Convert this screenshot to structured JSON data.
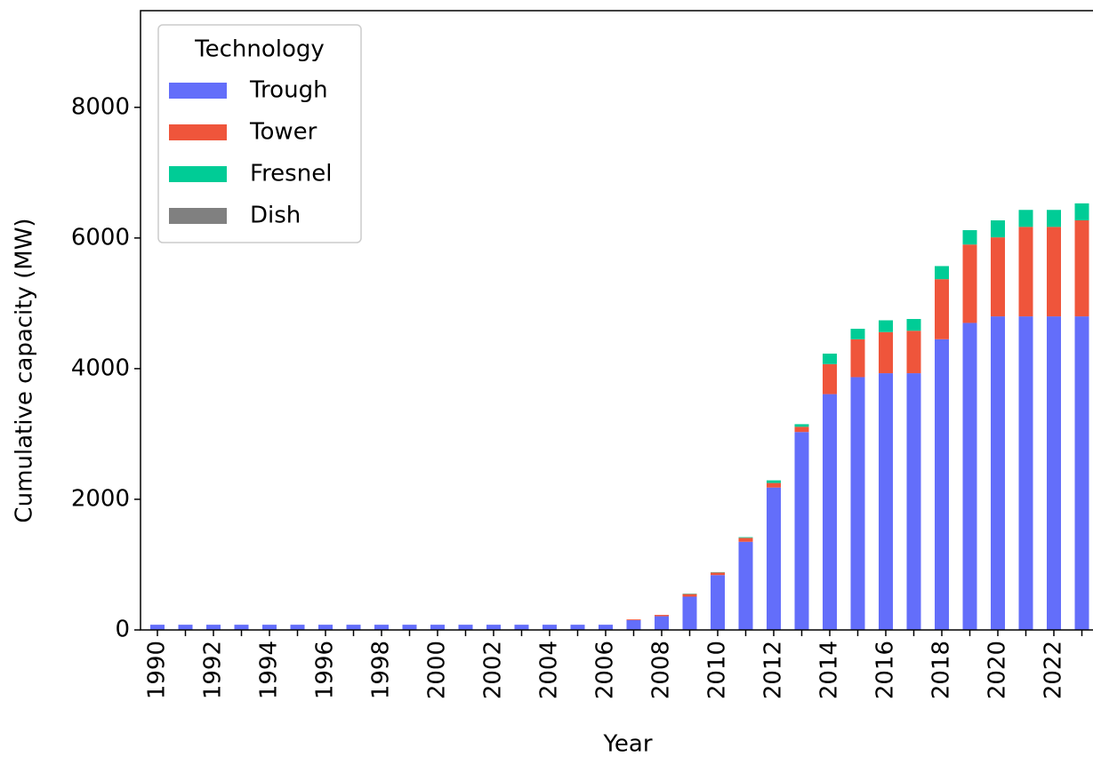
{
  "chart_data": {
    "type": "stacked_bar",
    "xlabel": "Year",
    "ylabel": "Cumulative capacity (MW)",
    "legend_title": "Technology",
    "legend": "upper left",
    "categories": [
      "1990",
      null,
      "1992",
      null,
      "1994",
      null,
      "1996",
      null,
      "1998",
      null,
      "2000",
      null,
      "2002",
      null,
      "2004",
      null,
      "2006",
      null,
      "2008",
      null,
      "2010",
      null,
      "2012",
      null,
      "2014",
      null,
      "2016",
      null,
      "2018",
      null,
      "2020",
      null,
      "2022",
      null
    ],
    "series": [
      {
        "name": "Trough",
        "color": "#636efa",
        "values": [
          80,
          80,
          80,
          80,
          80,
          80,
          80,
          80,
          80,
          80,
          80,
          80,
          80,
          80,
          80,
          80,
          80,
          150,
          210,
          510,
          840,
          1350,
          2180,
          3030,
          3610,
          3870,
          3930,
          3930,
          4450,
          4700,
          4800,
          4800,
          4800,
          4800
        ]
      },
      {
        "name": "Tower",
        "color": "#ef553b",
        "values": [
          0,
          0,
          0,
          0,
          0,
          0,
          0,
          0,
          0,
          0,
          0,
          0,
          0,
          0,
          0,
          0,
          0,
          11,
          20,
          40,
          40,
          60,
          70,
          80,
          460,
          580,
          630,
          650,
          920,
          1200,
          1210,
          1370,
          1370,
          1470
        ]
      },
      {
        "name": "Fresnel",
        "color": "#00cc96",
        "values": [
          0,
          0,
          0,
          0,
          0,
          0,
          0,
          0,
          0,
          0,
          0,
          0,
          0,
          0,
          0,
          0,
          0,
          0,
          0,
          5,
          5,
          10,
          40,
          40,
          160,
          160,
          180,
          180,
          200,
          220,
          260,
          260,
          260,
          260
        ]
      },
      {
        "name": "Dish",
        "color": "#808080",
        "values": [
          0,
          0,
          0,
          0,
          0,
          0,
          0,
          0,
          0,
          0,
          0,
          0,
          0,
          0,
          0,
          0,
          0,
          0,
          0,
          0,
          0,
          0,
          0,
          0,
          0,
          0,
          0,
          0,
          0,
          0,
          0,
          0,
          0,
          0
        ]
      }
    ],
    "ylim": [
      0,
      9480
    ],
    "yticks": [
      0,
      2000,
      4000,
      6000,
      8000
    ]
  }
}
